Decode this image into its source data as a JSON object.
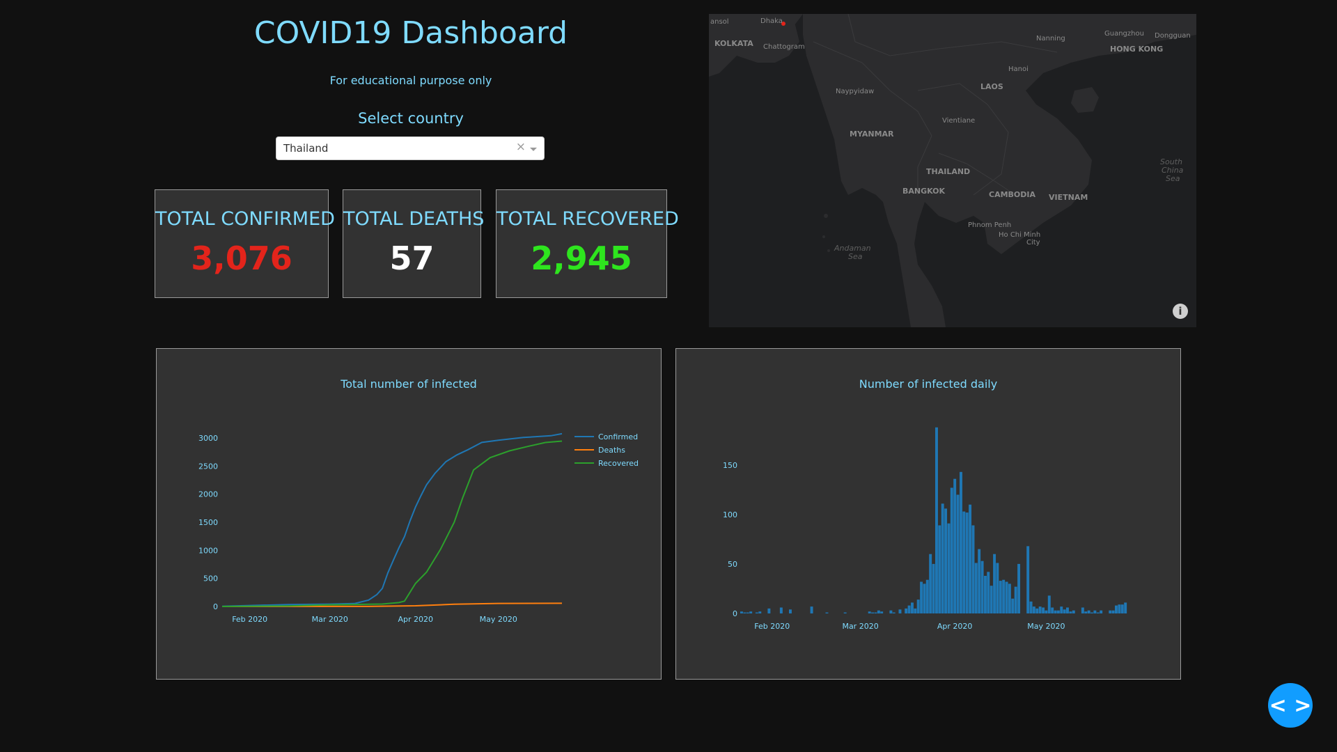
{
  "header": {
    "title": "COVID19 Dashboard",
    "subtitle": "For educational purpose only",
    "select_label": "Select country"
  },
  "country_select": {
    "value": "Thailand",
    "clear_glyph": "×"
  },
  "cards": [
    {
      "label": "TOTAL CONFIRMED",
      "value": "3,076",
      "color": "#e3241b"
    },
    {
      "label": "TOTAL DEATHS",
      "value": "57",
      "color": "#ffffff"
    },
    {
      "label": "TOTAL RECOVERED",
      "value": "2,945",
      "color": "#2ee51e"
    }
  ],
  "map": {
    "labels": [
      {
        "text": "ansol",
        "kind": "city"
      },
      {
        "text": "Dhaka",
        "kind": "city"
      },
      {
        "text": "KOLKATA",
        "kind": "country"
      },
      {
        "text": "Chattogram",
        "kind": "city"
      },
      {
        "text": "Nanning",
        "kind": "city"
      },
      {
        "text": "Guangzhou",
        "kind": "city"
      },
      {
        "text": "Dongguan",
        "kind": "city"
      },
      {
        "text": "HONG KONG",
        "kind": "country"
      },
      {
        "text": "Hanoi",
        "kind": "city"
      },
      {
        "text": "LAOS",
        "kind": "country"
      },
      {
        "text": "Naypyidaw",
        "kind": "city"
      },
      {
        "text": "Vientiane",
        "kind": "city"
      },
      {
        "text": "MYANMAR",
        "kind": "country"
      },
      {
        "text": "THAILAND",
        "kind": "country"
      },
      {
        "text": "BANGKOK",
        "kind": "country"
      },
      {
        "text": "CAMBODIA",
        "kind": "country"
      },
      {
        "text": "VIETNAM",
        "kind": "country"
      },
      {
        "text": "Phnom Penh",
        "kind": "city"
      },
      {
        "text": "Ho Chi Minh",
        "kind": "city"
      },
      {
        "text": "City",
        "kind": "city"
      },
      {
        "text": "South",
        "kind": "water"
      },
      {
        "text": "China",
        "kind": "water"
      },
      {
        "text": "Sea",
        "kind": "water"
      },
      {
        "text": "Andaman",
        "kind": "water"
      },
      {
        "text": "Sea",
        "kind": "water"
      }
    ],
    "info_glyph": "i",
    "land_color": "#2c2c2e",
    "water_color": "#1e1f21"
  },
  "code_button": {
    "glyph": "< >"
  },
  "chart_data": [
    {
      "type": "line",
      "title": "Total number of infected",
      "xlabel": "",
      "ylabel": "",
      "x_ticks": [
        "Feb 2020",
        "Mar 2020",
        "Apr 2020",
        "May 2020"
      ],
      "x_range": [
        "2020-01-22",
        "2020-05-24"
      ],
      "ylim": [
        0,
        3100
      ],
      "y_ticks": [
        0,
        500,
        1000,
        1500,
        2000,
        2500,
        3000
      ],
      "legend": "top-right",
      "series": [
        {
          "name": "Confirmed",
          "color": "#1f77b4",
          "x": [
            "2020-01-22",
            "2020-02-15",
            "2020-03-01",
            "2020-03-10",
            "2020-03-15",
            "2020-03-18",
            "2020-03-20",
            "2020-03-22",
            "2020-03-24",
            "2020-03-26",
            "2020-03-28",
            "2020-03-30",
            "2020-04-01",
            "2020-04-03",
            "2020-04-05",
            "2020-04-08",
            "2020-04-12",
            "2020-04-16",
            "2020-04-20",
            "2020-04-25",
            "2020-05-01",
            "2020-05-10",
            "2020-05-20",
            "2020-05-24"
          ],
          "y": [
            4,
            35,
            42,
            53,
            114,
            212,
            322,
            599,
            827,
            1045,
            1245,
            1524,
            1771,
            1978,
            2169,
            2369,
            2579,
            2700,
            2792,
            2922,
            2960,
            3009,
            3040,
            3076
          ]
        },
        {
          "name": "Deaths",
          "color": "#ff7f0e",
          "x": [
            "2020-01-22",
            "2020-03-01",
            "2020-03-15",
            "2020-04-01",
            "2020-04-15",
            "2020-05-01",
            "2020-05-24"
          ],
          "y": [
            0,
            1,
            1,
            12,
            40,
            54,
            57
          ]
        },
        {
          "name": "Recovered",
          "color": "#2ca02c",
          "x": [
            "2020-01-22",
            "2020-02-15",
            "2020-03-01",
            "2020-03-20",
            "2020-03-26",
            "2020-03-28",
            "2020-04-01",
            "2020-04-05",
            "2020-04-10",
            "2020-04-15",
            "2020-04-18",
            "2020-04-22",
            "2020-04-28",
            "2020-05-05",
            "2020-05-12",
            "2020-05-18",
            "2020-05-24"
          ],
          "y": [
            0,
            10,
            30,
            44,
            70,
            95,
            410,
            612,
            1013,
            1500,
            1928,
            2430,
            2650,
            2772,
            2855,
            2920,
            2945
          ]
        }
      ]
    },
    {
      "type": "bar",
      "title": "Number of infected daily",
      "xlabel": "",
      "ylabel": "",
      "x_ticks": [
        "Feb 2020",
        "Mar 2020",
        "Apr 2020",
        "May 2020"
      ],
      "x_range": [
        "2020-01-22",
        "2020-05-24"
      ],
      "ylim": [
        0,
        190
      ],
      "y_ticks": [
        0,
        50,
        100,
        150
      ],
      "color": "#1f77b4",
      "series": [
        {
          "name": "",
          "start": "2020-01-22",
          "values": [
            2,
            1,
            1,
            2,
            0,
            1,
            2,
            0,
            0,
            5,
            0,
            0,
            0,
            6,
            0,
            0,
            4,
            0,
            0,
            0,
            0,
            0,
            0,
            7,
            0,
            0,
            0,
            0,
            1,
            0,
            0,
            0,
            0,
            0,
            1,
            0,
            0,
            0,
            0,
            0,
            0,
            0,
            2,
            1,
            1,
            3,
            2,
            0,
            0,
            3,
            1,
            0,
            4,
            0,
            5,
            8,
            11,
            5,
            14,
            32,
            30,
            34,
            60,
            50,
            188,
            89,
            111,
            106,
            91,
            127,
            136,
            120,
            143,
            103,
            102,
            110,
            89,
            51,
            65,
            53,
            38,
            42,
            28,
            60,
            51,
            33,
            34,
            32,
            30,
            15,
            27,
            50,
            0,
            0,
            68,
            12,
            7,
            5,
            7,
            6,
            3,
            18,
            6,
            3,
            3,
            7,
            4,
            6,
            2,
            3,
            0,
            0,
            6,
            2,
            3,
            1,
            3,
            1,
            3,
            0,
            0,
            3,
            3,
            8,
            9,
            9,
            11
          ]
        }
      ]
    }
  ]
}
